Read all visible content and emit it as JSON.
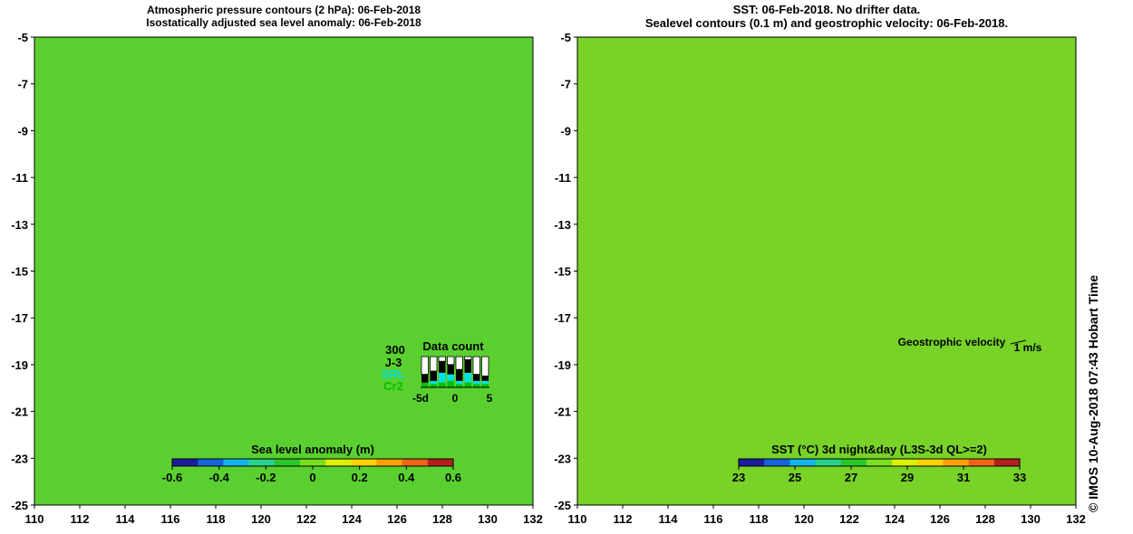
{
  "left_panel": {
    "title_line1": "Atmospheric pressure contours (2 hPa): 06-Feb-2018",
    "title_line2": "Isostatically adjusted sea level anomaly: 06-Feb-2018",
    "colorbar": {
      "title": "Sea level anomaly (m)",
      "ticks": [
        "-0.6",
        "-0.4",
        "-0.2",
        "0",
        "0.2",
        "0.4",
        "0.6"
      ],
      "colors": [
        "#1c1c9c",
        "#1464dc",
        "#14b4f0",
        "#28d28c",
        "#28c828",
        "#78e01e",
        "#dcf000",
        "#ffd200",
        "#ffa000",
        "#f06414",
        "#b41e1e"
      ]
    },
    "data_count": {
      "title": "Data count",
      "max_label": "300",
      "series": [
        {
          "label": "J-3",
          "color": "#000000"
        },
        {
          "label": "SRL",
          "color": "#00e0e0"
        },
        {
          "label": "Cr2",
          "color": "#00c000"
        }
      ],
      "xticks": [
        "-5d",
        "0",
        "5"
      ],
      "bars": [
        {
          "j3": 0.25,
          "srl": 0.0,
          "cr2": 0.15
        },
        {
          "j3": 0.3,
          "srl": 0.1,
          "cr2": 0.1
        },
        {
          "j3": 0.35,
          "srl": 0.3,
          "cr2": 0.15
        },
        {
          "j3": 0.3,
          "srl": 0.2,
          "cr2": 0.2
        },
        {
          "j3": 0.35,
          "srl": 0.1,
          "cr2": 0.1
        },
        {
          "j3": 0.4,
          "srl": 0.3,
          "cr2": 0.15
        },
        {
          "j3": 0.2,
          "srl": 0.1,
          "cr2": 0.1
        },
        {
          "j3": 0.15,
          "srl": 0.1,
          "cr2": 0.1
        }
      ]
    }
  },
  "right_panel": {
    "title_line1": "SST: 06-Feb-2018. No drifter data.",
    "title_line2": "Sealevel contours (0.1 m) and geostrophic velocity: 06-Feb-2018.",
    "velocity_label": "Geostrophic velocity",
    "velocity_scale": "1 m/s",
    "colorbar": {
      "title": "SST (°C) 3d night&day (L3S-3d QL>=2)",
      "ticks": [
        "23",
        "25",
        "27",
        "29",
        "31",
        "33"
      ],
      "colors": [
        "#1c1c9c",
        "#1464dc",
        "#14b4f0",
        "#28d28c",
        "#28c828",
        "#78e01e",
        "#dcf000",
        "#ffd200",
        "#ffa000",
        "#f06414",
        "#b41e1e"
      ]
    }
  },
  "axes": {
    "lon_ticks": [
      "110",
      "112",
      "114",
      "116",
      "118",
      "120",
      "122",
      "124",
      "126",
      "128",
      "130",
      "132"
    ],
    "lat_ticks": [
      "-5",
      "-7",
      "-9",
      "-11",
      "-13",
      "-15",
      "-17",
      "-19",
      "-21",
      "-23",
      "-25"
    ]
  },
  "credit": "© IMOS 10-Aug-2018 07:43 Hobart Time",
  "colors": {
    "land": "#f9c898",
    "coast": "#000000"
  }
}
